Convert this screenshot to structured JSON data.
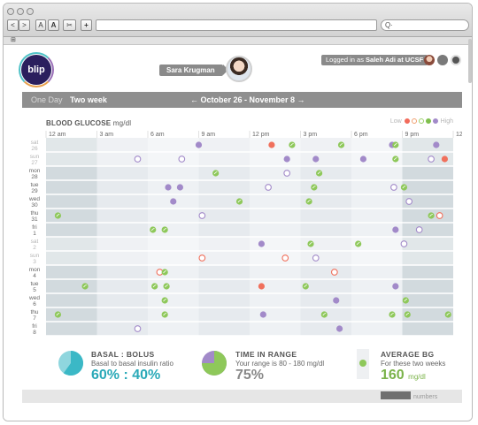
{
  "browser": {
    "nav_back": "<",
    "nav_forward": ">",
    "text_smaller": "A",
    "text_larger": "A",
    "tools": "✂",
    "add": "+",
    "search_glyph": "Q·",
    "bookmarks_glyph": "⊞"
  },
  "header": {
    "logo": "blip",
    "user_name": "Sara Krugman",
    "logged_in_prefix": "Logged in as ",
    "logged_in_user": "Saleh Adi at UCSF"
  },
  "nav": {
    "one_day": "One Day",
    "two_week": "Two week",
    "range": "← October 26 - November 8 →"
  },
  "chart_data": {
    "type": "scatter",
    "title": "BLOOD GLUCOSE",
    "unit": "mg/dl",
    "legend_low": "Low",
    "legend_high": "High",
    "legend_colors": [
      "#f26b5b",
      "#f0a070",
      "#9ccf6b",
      "#7fbf4d",
      "#a28ac9"
    ],
    "x_ticks": [
      "12 am",
      "3 am",
      "6 am",
      "9 am",
      "12 pm",
      "3 pm",
      "6 pm",
      "9 pm",
      "12 am"
    ],
    "x_range": [
      0,
      24
    ],
    "days": [
      {
        "dow": "sat",
        "day": "26",
        "weekend": true
      },
      {
        "dow": "sun",
        "day": "27",
        "weekend": true
      },
      {
        "dow": "mon",
        "day": "28",
        "weekend": false
      },
      {
        "dow": "tue",
        "day": "29",
        "weekend": false
      },
      {
        "dow": "wed",
        "day": "30",
        "weekend": false
      },
      {
        "dow": "thu",
        "day": "31",
        "weekend": false
      },
      {
        "dow": "fri",
        "day": "1",
        "weekend": false
      },
      {
        "dow": "sat",
        "day": "2",
        "weekend": true
      },
      {
        "dow": "sun",
        "day": "3",
        "weekend": true
      },
      {
        "dow": "mon",
        "day": "4",
        "weekend": false
      },
      {
        "dow": "tue",
        "day": "5",
        "weekend": false
      },
      {
        "dow": "wed",
        "day": "6",
        "weekend": false
      },
      {
        "dow": "thu",
        "day": "7",
        "weekend": false
      },
      {
        "dow": "fri",
        "day": "8",
        "weekend": false
      }
    ],
    "points": [
      {
        "day": 0,
        "hour": 9.0,
        "kind": "purple"
      },
      {
        "day": 0,
        "hour": 13.3,
        "kind": "red"
      },
      {
        "day": 0,
        "hour": 14.5,
        "kind": "green"
      },
      {
        "day": 0,
        "hour": 17.4,
        "kind": "green"
      },
      {
        "day": 0,
        "hour": 20.4,
        "kind": "purple"
      },
      {
        "day": 0,
        "hour": 20.6,
        "kind": "green"
      },
      {
        "day": 0,
        "hour": 23.0,
        "kind": "purple"
      },
      {
        "day": 1,
        "hour": 5.4,
        "kind": "purple-open"
      },
      {
        "day": 1,
        "hour": 8.0,
        "kind": "purple-open"
      },
      {
        "day": 1,
        "hour": 14.2,
        "kind": "purple"
      },
      {
        "day": 1,
        "hour": 15.9,
        "kind": "purple"
      },
      {
        "day": 1,
        "hour": 18.7,
        "kind": "purple"
      },
      {
        "day": 1,
        "hour": 20.6,
        "kind": "green"
      },
      {
        "day": 1,
        "hour": 22.7,
        "kind": "purple-open"
      },
      {
        "day": 1,
        "hour": 23.5,
        "kind": "red"
      },
      {
        "day": 2,
        "hour": 10.0,
        "kind": "green"
      },
      {
        "day": 2,
        "hour": 14.2,
        "kind": "purple-open"
      },
      {
        "day": 2,
        "hour": 16.1,
        "kind": "green"
      },
      {
        "day": 3,
        "hour": 7.2,
        "kind": "purple"
      },
      {
        "day": 3,
        "hour": 7.9,
        "kind": "purple"
      },
      {
        "day": 3,
        "hour": 13.1,
        "kind": "purple-open"
      },
      {
        "day": 3,
        "hour": 15.8,
        "kind": "green"
      },
      {
        "day": 3,
        "hour": 20.5,
        "kind": "purple-open"
      },
      {
        "day": 3,
        "hour": 21.1,
        "kind": "green"
      },
      {
        "day": 4,
        "hour": 7.5,
        "kind": "purple"
      },
      {
        "day": 4,
        "hour": 11.4,
        "kind": "green"
      },
      {
        "day": 4,
        "hour": 15.5,
        "kind": "green"
      },
      {
        "day": 4,
        "hour": 21.4,
        "kind": "purple-open"
      },
      {
        "day": 5,
        "hour": 0.7,
        "kind": "green"
      },
      {
        "day": 5,
        "hour": 9.2,
        "kind": "purple-open"
      },
      {
        "day": 5,
        "hour": 22.7,
        "kind": "green"
      },
      {
        "day": 5,
        "hour": 23.2,
        "kind": "red-open"
      },
      {
        "day": 6,
        "hour": 6.3,
        "kind": "green"
      },
      {
        "day": 6,
        "hour": 7.0,
        "kind": "green"
      },
      {
        "day": 6,
        "hour": 20.6,
        "kind": "purple"
      },
      {
        "day": 6,
        "hour": 22.0,
        "kind": "purple-open"
      },
      {
        "day": 7,
        "hour": 12.7,
        "kind": "purple"
      },
      {
        "day": 7,
        "hour": 15.6,
        "kind": "green"
      },
      {
        "day": 7,
        "hour": 18.4,
        "kind": "green"
      },
      {
        "day": 7,
        "hour": 21.1,
        "kind": "purple-open"
      },
      {
        "day": 8,
        "hour": 9.2,
        "kind": "red-open"
      },
      {
        "day": 8,
        "hour": 14.1,
        "kind": "red-open"
      },
      {
        "day": 8,
        "hour": 15.9,
        "kind": "purple-open"
      },
      {
        "day": 9,
        "hour": 6.7,
        "kind": "red-open"
      },
      {
        "day": 9,
        "hour": 7.0,
        "kind": "green"
      },
      {
        "day": 9,
        "hour": 17.0,
        "kind": "red-open"
      },
      {
        "day": 10,
        "hour": 2.3,
        "kind": "green"
      },
      {
        "day": 10,
        "hour": 6.4,
        "kind": "green"
      },
      {
        "day": 10,
        "hour": 7.1,
        "kind": "green"
      },
      {
        "day": 10,
        "hour": 12.7,
        "kind": "red"
      },
      {
        "day": 10,
        "hour": 15.3,
        "kind": "green"
      },
      {
        "day": 10,
        "hour": 20.6,
        "kind": "purple"
      },
      {
        "day": 11,
        "hour": 7.0,
        "kind": "green"
      },
      {
        "day": 11,
        "hour": 17.1,
        "kind": "purple"
      },
      {
        "day": 11,
        "hour": 21.2,
        "kind": "green"
      },
      {
        "day": 12,
        "hour": 0.7,
        "kind": "green"
      },
      {
        "day": 12,
        "hour": 7.0,
        "kind": "green"
      },
      {
        "day": 12,
        "hour": 12.8,
        "kind": "purple"
      },
      {
        "day": 12,
        "hour": 16.4,
        "kind": "green"
      },
      {
        "day": 12,
        "hour": 20.4,
        "kind": "green"
      },
      {
        "day": 12,
        "hour": 21.3,
        "kind": "green"
      },
      {
        "day": 12,
        "hour": 23.7,
        "kind": "green"
      },
      {
        "day": 13,
        "hour": 5.4,
        "kind": "purple-open"
      },
      {
        "day": 13,
        "hour": 17.3,
        "kind": "purple"
      }
    ]
  },
  "stats": {
    "basal_title": "BASAL : BOLUS",
    "basal_sub": "Basal to basal insulin ratio",
    "basal_value": "60% : 40%",
    "basal_pct": 60,
    "tir_title": "TIME IN RANGE",
    "tir_sub": "Your range is 80 - 180 mg/dl",
    "tir_value": "75%",
    "tir_pct": 75,
    "avg_title": "AVERAGE BG",
    "avg_sub": "For these two weeks",
    "avg_value": "160",
    "avg_unit": "mg/dl"
  },
  "footer": {
    "numbers_label": "numbers"
  },
  "colors": {
    "purple": "#a28ac9",
    "green": "#8ec85a",
    "red": "#f0705c",
    "teal": "#3bb8c6",
    "avg_green": "#7bb34a"
  }
}
